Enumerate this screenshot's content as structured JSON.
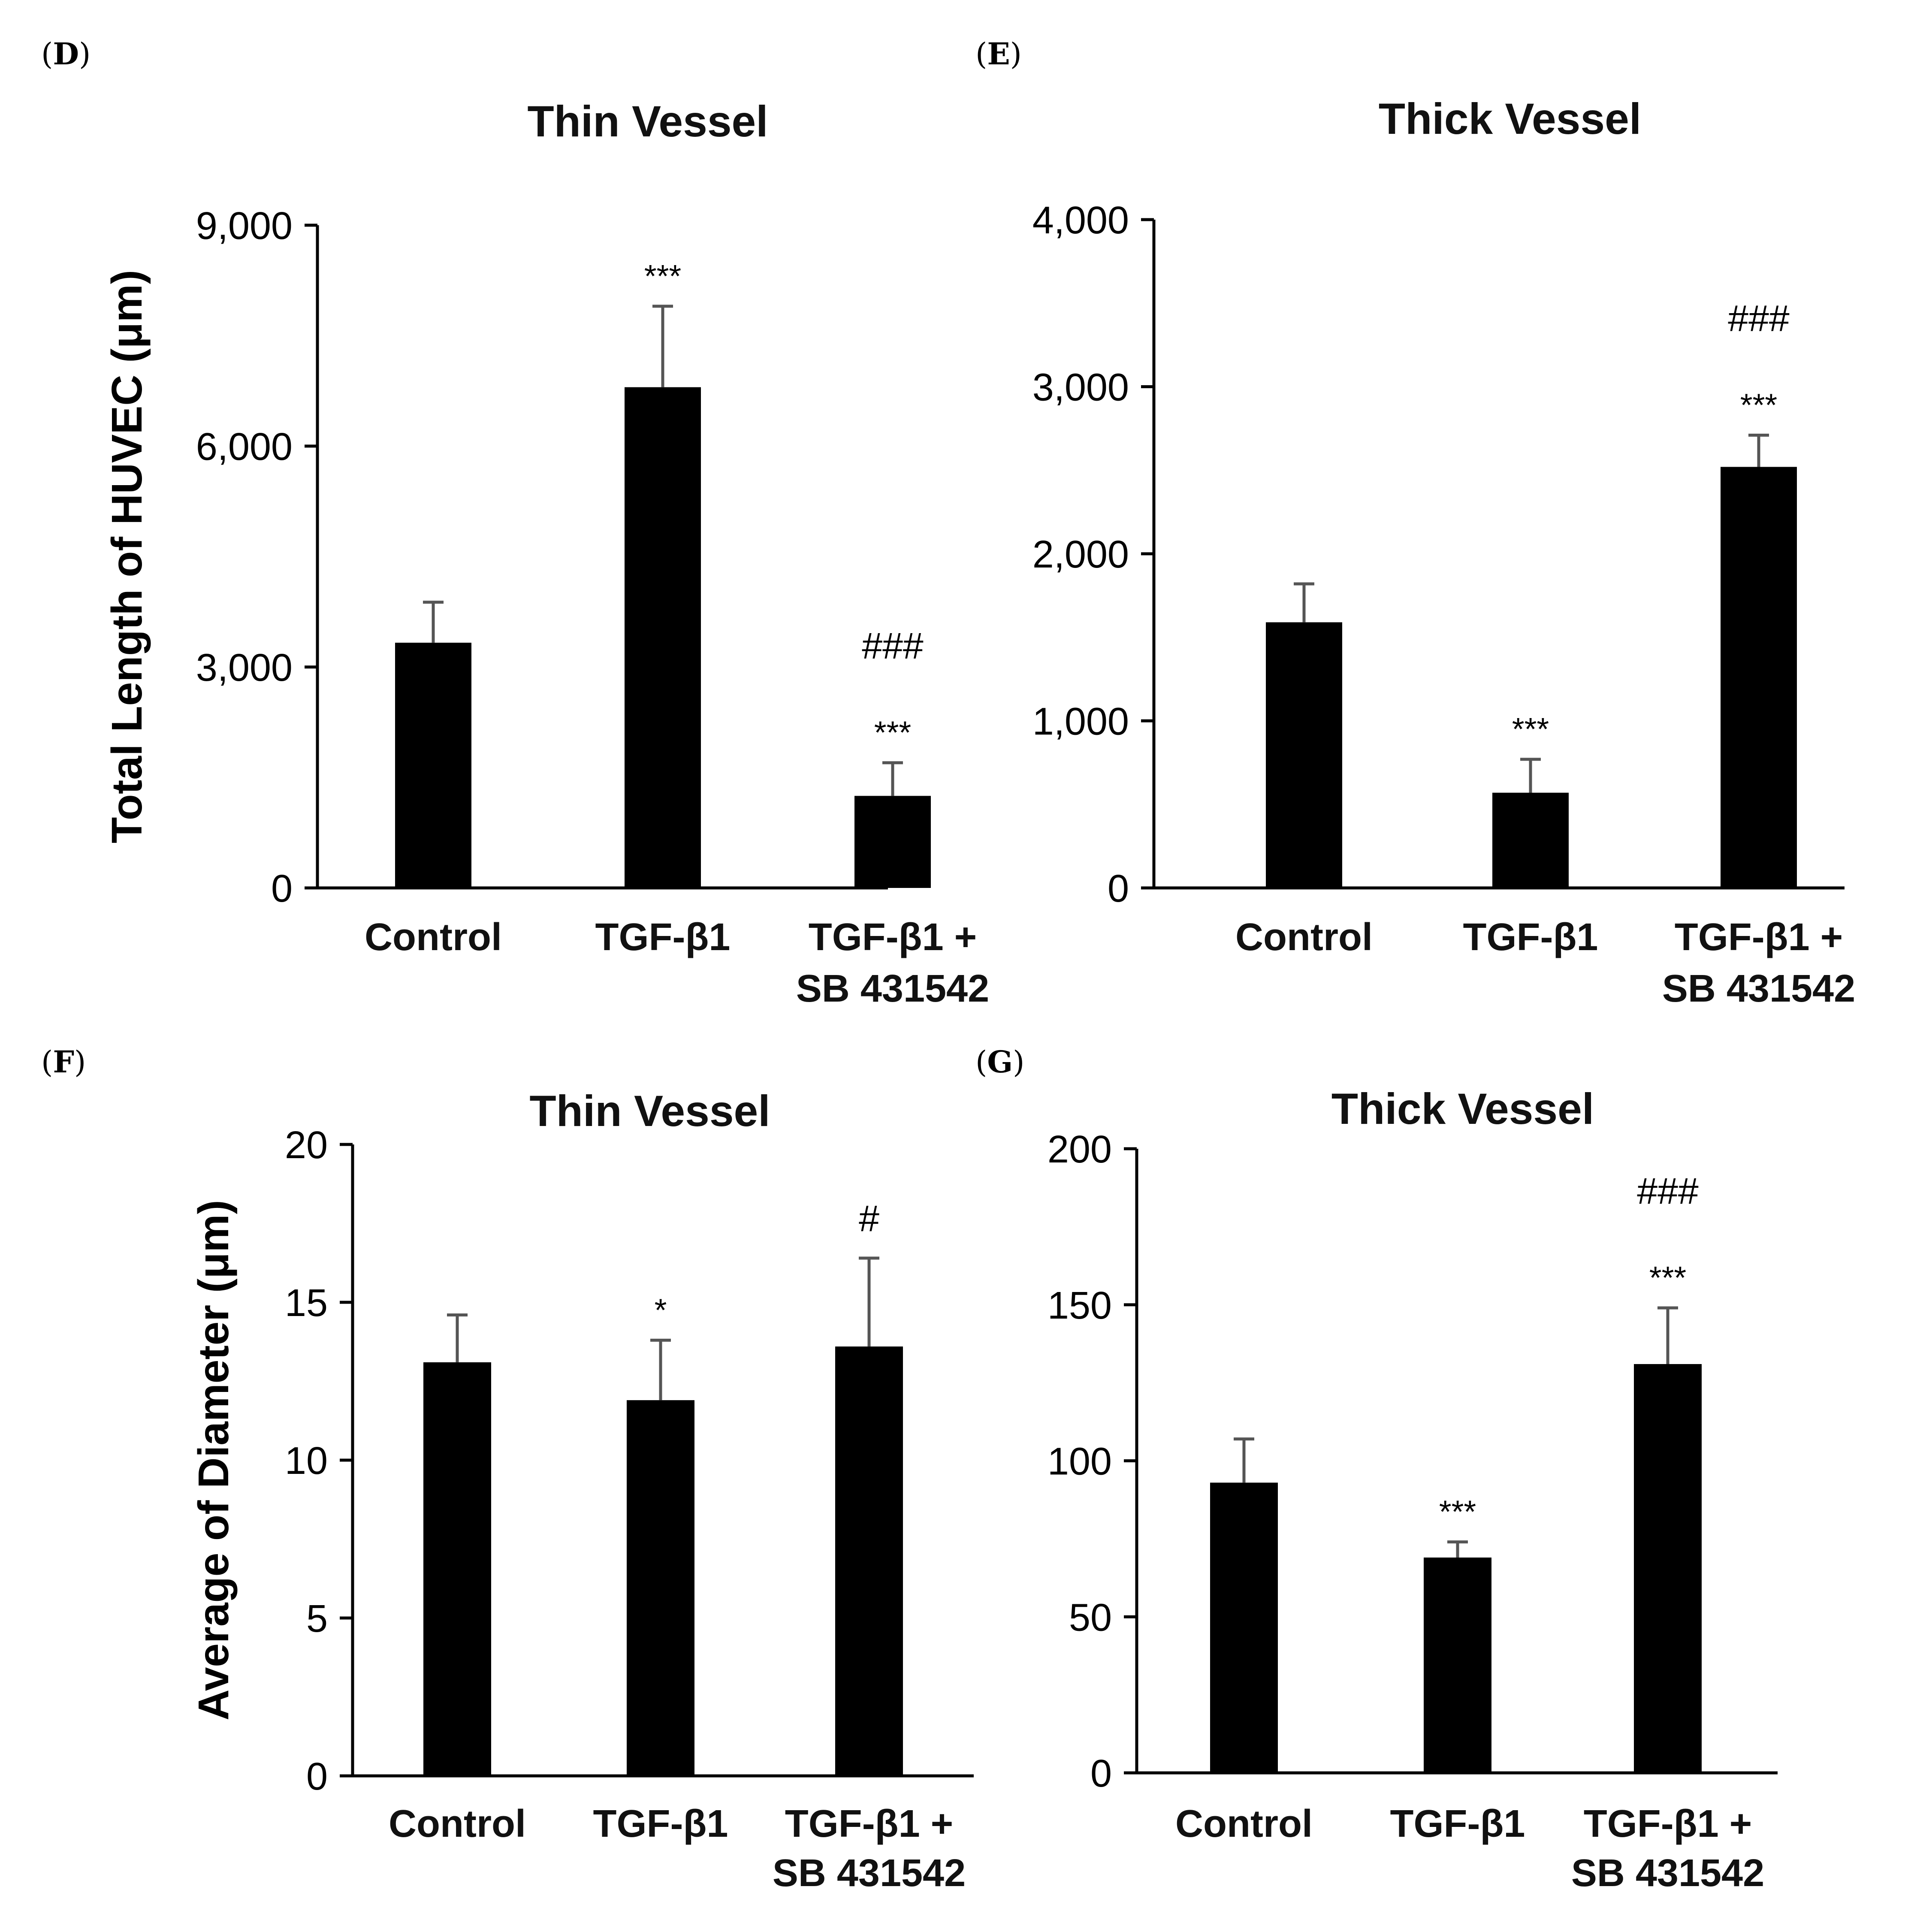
{
  "chart_data": [
    {
      "panel": "D",
      "type": "bar",
      "title": "Thin Vessel",
      "ylabel": "Total Length of HUVEC (μm)",
      "xlabel": "",
      "ylim": [
        0,
        9000
      ],
      "yticks": [
        0,
        3000,
        6000,
        9000
      ],
      "ytick_labels": [
        "0",
        "3,000",
        "6,000",
        "9,000"
      ],
      "categories": [
        "Control",
        "TGF-β1",
        "TGF-β1 + SB 431542"
      ],
      "category_lines": [
        [
          "Control"
        ],
        [
          "TGF-β1"
        ],
        [
          "TGF-β1 +",
          "SB 431542"
        ]
      ],
      "values": [
        3330,
        6800,
        1250
      ],
      "errors": [
        550,
        1100,
        450
      ],
      "significance": [
        [],
        [
          "***"
        ],
        [
          "###",
          "***"
        ]
      ]
    },
    {
      "panel": "E",
      "type": "bar",
      "title": "Thick Vessel",
      "ylabel": "",
      "xlabel": "",
      "ylim": [
        0,
        4000
      ],
      "yticks": [
        0,
        1000,
        2000,
        3000,
        4000
      ],
      "ytick_labels": [
        "0",
        "1,000",
        "2,000",
        "3,000",
        "4,000"
      ],
      "categories": [
        "Control",
        "TGF-β1",
        "TGF-β1 + SB 431542"
      ],
      "category_lines": [
        [
          "Control"
        ],
        [
          "TGF-β1"
        ],
        [
          "TGF-β1 +",
          "SB 431542"
        ]
      ],
      "values": [
        1590,
        570,
        2520
      ],
      "errors": [
        230,
        200,
        190
      ],
      "significance": [
        [],
        [
          "***"
        ],
        [
          "###",
          "***"
        ]
      ]
    },
    {
      "panel": "F",
      "type": "bar",
      "title": "Thin Vessel",
      "ylabel": "Average of  Diameter (μm)",
      "xlabel": "",
      "ylim": [
        0,
        20
      ],
      "yticks": [
        0,
        5,
        10,
        15,
        20
      ],
      "ytick_labels": [
        "0",
        "5",
        "10",
        "15",
        "20"
      ],
      "categories": [
        "Control",
        "TGF-β1",
        "TGF-β1 + SB 431542"
      ],
      "category_lines": [
        [
          "Control"
        ],
        [
          "TGF-β1"
        ],
        [
          "TGF-β1 +",
          "SB 431542"
        ]
      ],
      "values": [
        13.1,
        11.9,
        13.6
      ],
      "errors": [
        1.5,
        1.9,
        2.8
      ],
      "significance": [
        [],
        [
          "*"
        ],
        [
          "#"
        ]
      ]
    },
    {
      "panel": "G",
      "type": "bar",
      "title": "Thick Vessel",
      "ylabel": "",
      "xlabel": "",
      "ylim": [
        0,
        200
      ],
      "yticks": [
        0,
        50,
        100,
        150,
        200
      ],
      "ytick_labels": [
        "0",
        "50",
        "100",
        "150",
        "200"
      ],
      "categories": [
        "Control",
        "TGF-β1",
        "TGF-β1 + SB 431542"
      ],
      "category_lines": [
        [
          "Control"
        ],
        [
          "TGF-β1"
        ],
        [
          "TGF-β1 +",
          "SB 431542"
        ]
      ],
      "values": [
        93,
        69,
        131
      ],
      "errors": [
        14,
        5,
        18
      ],
      "significance": [
        [],
        [
          "***"
        ],
        [
          "###",
          "***"
        ]
      ]
    }
  ]
}
